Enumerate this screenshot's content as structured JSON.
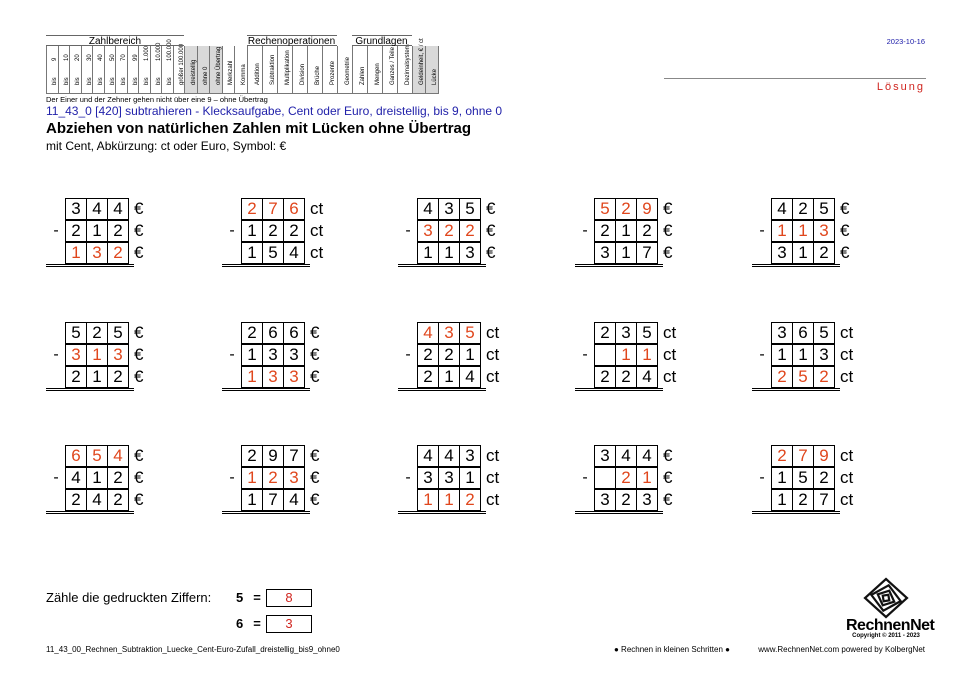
{
  "header": {
    "zahlbereich_title": "Zahlbereich",
    "rechen_title": "Rechenoperationen",
    "grundlagen_title": "Grundlagen",
    "zahl_cols": [
      {
        "top": "9",
        "bot": "bis"
      },
      {
        "top": "10",
        "bot": "bis"
      },
      {
        "top": "20",
        "bot": "bis"
      },
      {
        "top": "30",
        "bot": "bis"
      },
      {
        "top": "40",
        "bot": "bis"
      },
      {
        "top": "50",
        "bot": "bis"
      },
      {
        "top": "70",
        "bot": "bis"
      },
      {
        "top": "99",
        "bot": "bis"
      },
      {
        "top": "1.000",
        "bot": "bis"
      },
      {
        "top": "10.000",
        "bot": "bis"
      },
      {
        "top": "100.000",
        "bot": "bis"
      },
      {
        "top": "",
        "bot": "größer 100.000"
      }
    ],
    "mid_cols": [
      "dreistellig",
      "ohne 0",
      "ohne Übertrag",
      "Merkzahl",
      "Komma"
    ],
    "rechen_cols": [
      "Addition",
      "Subtraktion",
      "Multiplikation",
      "Division",
      "Brüche",
      "Prozente"
    ],
    "geo_col": "Geometrie",
    "grund_cols": [
      "Zahlen",
      "Mengen",
      "Ganzes / Teile",
      "Dezimalsystem"
    ],
    "extra_cols": [
      "Geldeinheit, € / ct",
      "Lücke"
    ],
    "note": "Der Einer und der Zehner gehen nicht über eine 9 – ohne Übertrag"
  },
  "date": "2023-10-16",
  "solution_label": "Lösung",
  "code_line": "11_43_0   [420]   subtrahieren - Klecksaufgabe, Cent oder Euro, dreistellig, bis 9, ohne 0",
  "title": "Abziehen von natürlichen Zahlen mit Lücken ohne Übertrag",
  "subtitle": "mit Cent, Abkürzung: ct oder Euro, Symbol: €",
  "minus_sign": "-",
  "problems": [
    {
      "unit": "€",
      "rows": [
        [
          "3",
          "4",
          "4"
        ],
        [
          "2",
          "1",
          "2"
        ],
        [
          "1",
          "3",
          "2"
        ]
      ],
      "red": [
        [
          0,
          0,
          0
        ],
        [
          0,
          0,
          0
        ],
        [
          1,
          1,
          1
        ]
      ]
    },
    {
      "unit": "ct",
      "rows": [
        [
          "2",
          "7",
          "6"
        ],
        [
          "1",
          "2",
          "2"
        ],
        [
          "1",
          "5",
          "4"
        ]
      ],
      "red": [
        [
          1,
          1,
          1
        ],
        [
          0,
          0,
          0
        ],
        [
          0,
          0,
          0
        ]
      ]
    },
    {
      "unit": "€",
      "rows": [
        [
          "4",
          "3",
          "5"
        ],
        [
          "3",
          "2",
          "2"
        ],
        [
          "1",
          "1",
          "3"
        ]
      ],
      "red": [
        [
          0,
          0,
          0
        ],
        [
          1,
          1,
          1
        ],
        [
          0,
          0,
          0
        ]
      ]
    },
    {
      "unit": "€",
      "rows": [
        [
          "5",
          "2",
          "9"
        ],
        [
          "2",
          "1",
          "2"
        ],
        [
          "3",
          "1",
          "7"
        ]
      ],
      "red": [
        [
          1,
          1,
          1
        ],
        [
          0,
          0,
          0
        ],
        [
          0,
          0,
          0
        ]
      ]
    },
    {
      "unit": "€",
      "rows": [
        [
          "4",
          "2",
          "5"
        ],
        [
          "1",
          "1",
          "3"
        ],
        [
          "3",
          "1",
          "2"
        ]
      ],
      "red": [
        [
          0,
          0,
          0
        ],
        [
          1,
          1,
          1
        ],
        [
          0,
          0,
          0
        ]
      ]
    },
    {
      "unit": "€",
      "rows": [
        [
          "5",
          "2",
          "5"
        ],
        [
          "3",
          "1",
          "3"
        ],
        [
          "2",
          "1",
          "2"
        ]
      ],
      "red": [
        [
          0,
          0,
          0
        ],
        [
          1,
          1,
          1
        ],
        [
          0,
          0,
          0
        ]
      ]
    },
    {
      "unit": "€",
      "rows": [
        [
          "2",
          "6",
          "6"
        ],
        [
          "1",
          "3",
          "3"
        ],
        [
          "1",
          "3",
          "3"
        ]
      ],
      "red": [
        [
          0,
          0,
          0
        ],
        [
          0,
          0,
          0
        ],
        [
          1,
          1,
          1
        ]
      ]
    },
    {
      "unit": "ct",
      "rows": [
        [
          "4",
          "3",
          "5"
        ],
        [
          "2",
          "2",
          "1"
        ],
        [
          "2",
          "1",
          "4"
        ]
      ],
      "red": [
        [
          1,
          1,
          1
        ],
        [
          0,
          0,
          0
        ],
        [
          0,
          0,
          0
        ]
      ]
    },
    {
      "unit": "ct",
      "rows": [
        [
          "2",
          "3",
          "5"
        ],
        [
          "",
          "1",
          "1"
        ],
        [
          "2",
          "2",
          "4"
        ]
      ],
      "red": [
        [
          0,
          0,
          0
        ],
        [
          0,
          1,
          1
        ],
        [
          0,
          0,
          0
        ]
      ]
    },
    {
      "unit": "ct",
      "rows": [
        [
          "3",
          "6",
          "5"
        ],
        [
          "1",
          "1",
          "3"
        ],
        [
          "2",
          "5",
          "2"
        ]
      ],
      "red": [
        [
          0,
          0,
          0
        ],
        [
          0,
          0,
          0
        ],
        [
          1,
          1,
          1
        ]
      ]
    },
    {
      "unit": "€",
      "rows": [
        [
          "6",
          "5",
          "4"
        ],
        [
          "4",
          "1",
          "2"
        ],
        [
          "2",
          "4",
          "2"
        ]
      ],
      "red": [
        [
          1,
          1,
          1
        ],
        [
          0,
          0,
          0
        ],
        [
          0,
          0,
          0
        ]
      ]
    },
    {
      "unit": "€",
      "rows": [
        [
          "2",
          "9",
          "7"
        ],
        [
          "1",
          "2",
          "3"
        ],
        [
          "1",
          "7",
          "4"
        ]
      ],
      "red": [
        [
          0,
          0,
          0
        ],
        [
          1,
          1,
          1
        ],
        [
          0,
          0,
          0
        ]
      ]
    },
    {
      "unit": "ct",
      "rows": [
        [
          "4",
          "4",
          "3"
        ],
        [
          "3",
          "3",
          "1"
        ],
        [
          "1",
          "1",
          "2"
        ]
      ],
      "red": [
        [
          0,
          0,
          0
        ],
        [
          0,
          0,
          0
        ],
        [
          1,
          1,
          1
        ]
      ]
    },
    {
      "unit": "€",
      "rows": [
        [
          "3",
          "4",
          "4"
        ],
        [
          "",
          "2",
          "1"
        ],
        [
          "3",
          "2",
          "3"
        ]
      ],
      "red": [
        [
          0,
          0,
          0
        ],
        [
          0,
          1,
          1
        ],
        [
          0,
          0,
          0
        ]
      ]
    },
    {
      "unit": "ct",
      "rows": [
        [
          "2",
          "7",
          "9"
        ],
        [
          "1",
          "5",
          "2"
        ],
        [
          "1",
          "2",
          "7"
        ]
      ],
      "red": [
        [
          1,
          1,
          1
        ],
        [
          0,
          0,
          0
        ],
        [
          0,
          0,
          0
        ]
      ]
    }
  ],
  "count": {
    "label": "Zähle die gedruckten Ziffern:",
    "rows": [
      {
        "digit": "5",
        "eq": "=",
        "value": "8"
      },
      {
        "digit": "6",
        "eq": "=",
        "value": "3"
      }
    ]
  },
  "footer": {
    "filename": "11_43_00_Rechnen_Subtraktion_Luecke_Cent-Euro-Zufall_dreistellig_bis9_ohne0",
    "slogan": "● Rechnen in kleinen Schritten ●",
    "site": "www.RechnenNet.com powered by KolbergNet",
    "logo_word": "RechnenNet",
    "copyright": "Copyright © 2011 - 2023"
  },
  "logo_icon": "spiral-logo-icon",
  "colors": {
    "red_digit": "#e0461c",
    "solution": "#d0251f",
    "blue_text": "#2222aa"
  }
}
